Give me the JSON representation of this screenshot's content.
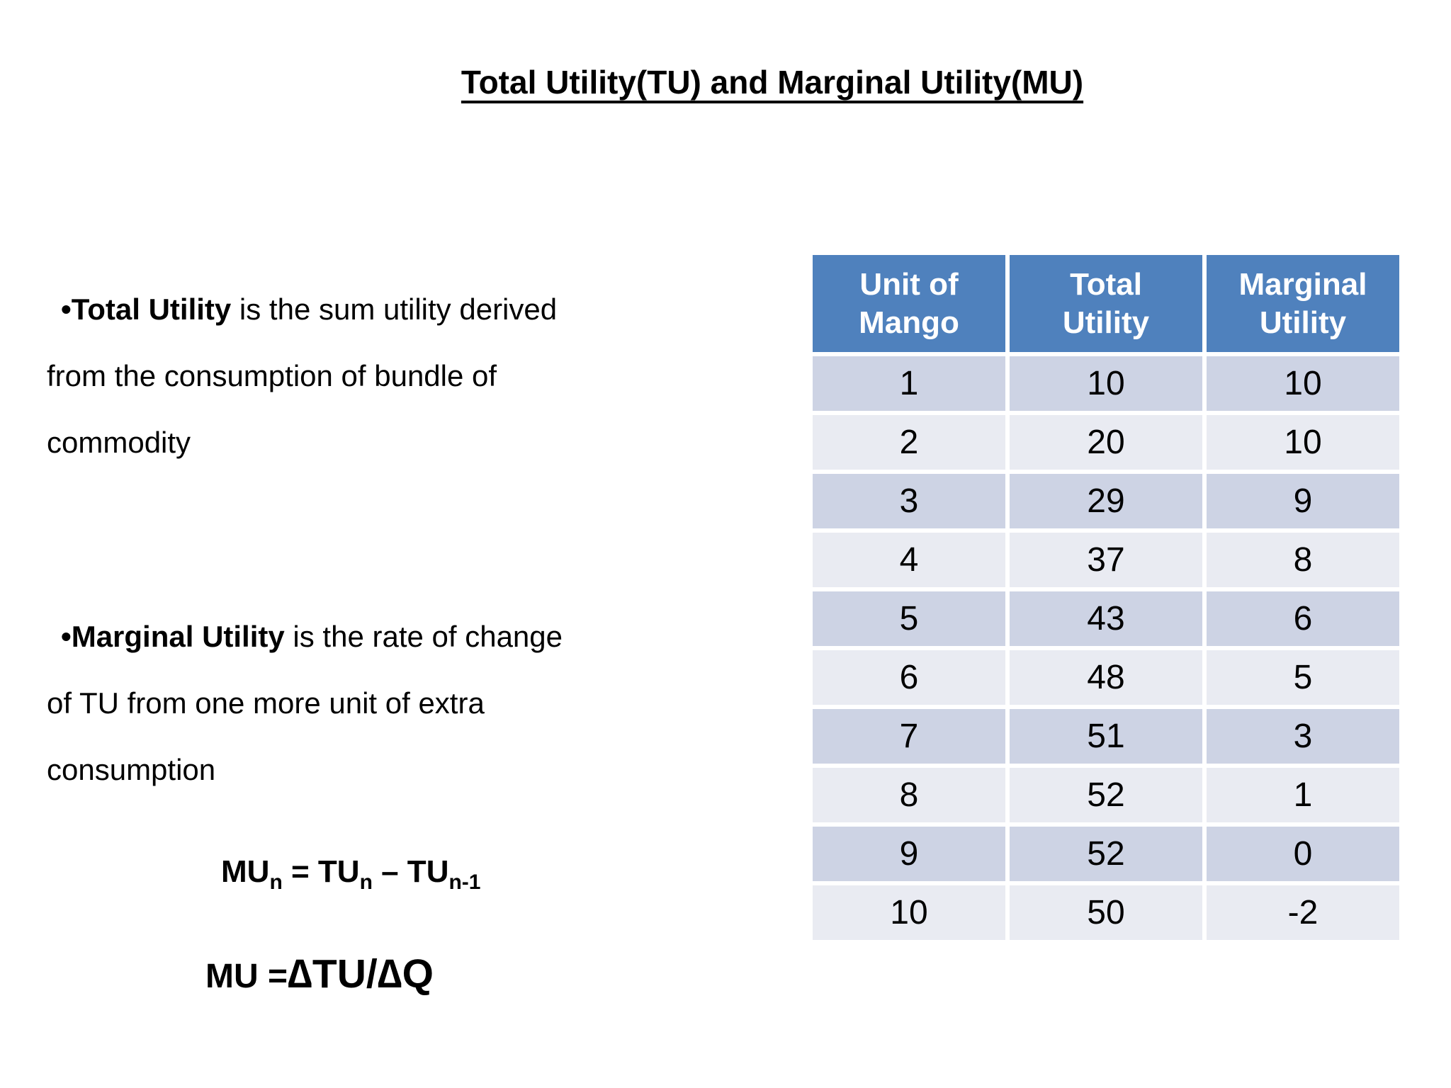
{
  "slide": {
    "title": "Total Utility(TU) and Marginal Utility(MU)",
    "bullets": [
      {
        "term": "•Total Utility",
        "rest": " is the sum utility derived\nfrom the consumption of bundle of\ncommodity"
      },
      {
        "term": "•Marginal Utility",
        "rest": " is the rate of change\nof TU from one more unit of extra\nconsumption"
      }
    ],
    "formulas": {
      "f1": {
        "p1": "MU",
        "s1": "n",
        "p2": " = TU",
        "s2": "n",
        "p3": " – TU",
        "s3": "n-1"
      },
      "f2": {
        "p1": "MU =",
        "p2": "∆TU/∆Q"
      }
    }
  },
  "table": {
    "headers": [
      "Unit of\nMango",
      "Total\nUtility",
      "Marginal\nUtility"
    ],
    "rows": [
      [
        "1",
        "10",
        "10"
      ],
      [
        "2",
        "20",
        "10"
      ],
      [
        "3",
        "29",
        "9"
      ],
      [
        "4",
        "37",
        "8"
      ],
      [
        "5",
        "43",
        "6"
      ],
      [
        "6",
        "48",
        "5"
      ],
      [
        "7",
        "51",
        "3"
      ],
      [
        "8",
        "52",
        "1"
      ],
      [
        "9",
        "52",
        "0"
      ],
      [
        "10",
        "50",
        "-2"
      ]
    ]
  },
  "colors": {
    "header_bg": "#4F81BD",
    "header_text": "#FFFFFF",
    "row_dark": "#CDD3E4",
    "row_light": "#E9EBF2",
    "text": "#000000",
    "background": "#FFFFFF"
  }
}
